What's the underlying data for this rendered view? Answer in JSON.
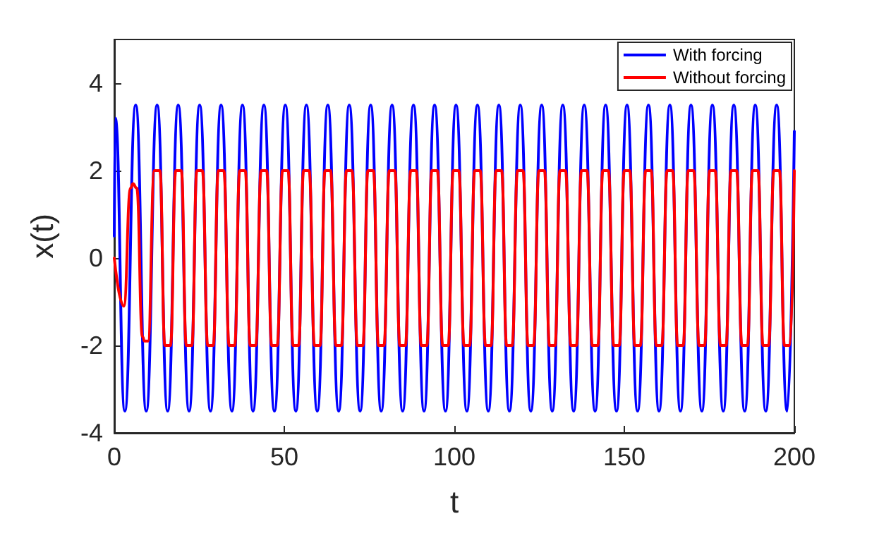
{
  "chart_data": {
    "type": "line",
    "xlabel": "t",
    "ylabel": "x(t)",
    "xlim": [
      0,
      200
    ],
    "ylim": [
      -4,
      5
    ],
    "xticks": [
      0,
      50,
      100,
      150,
      200
    ],
    "yticks": [
      -4,
      -2,
      0,
      2,
      4
    ],
    "grid": false,
    "legend": "top right",
    "marker": "none",
    "line_style": "solid",
    "series": [
      {
        "name": "With forcing",
        "color": "#0000ff",
        "x": [
          0,
          0.3,
          3.1,
          6.3,
          9.4,
          12.6,
          15.7,
          18.8,
          22.0,
          25.1,
          28.3,
          31.4,
          34.6,
          37.7,
          40.8,
          44.0,
          47.1,
          50.3,
          53.4,
          56.5,
          59.7,
          62.8,
          66.0,
          69.1,
          72.3,
          75.4,
          78.5,
          81.7,
          84.8,
          88.0,
          91.1,
          94.2,
          97.4,
          100.5,
          103.7,
          106.8,
          110.0,
          113.1,
          116.2,
          119.4,
          122.5,
          125.7,
          128.8,
          131.9,
          135.1,
          138.2,
          141.4,
          144.5,
          147.7,
          150.8,
          153.9,
          157.1,
          160.2,
          163.4,
          166.5,
          169.6,
          172.8,
          175.9,
          179.1,
          182.2,
          185.4,
          188.5,
          191.6,
          194.8,
          197.9,
          200
        ],
        "values": [
          0.5,
          3.2,
          -3.5,
          3.5,
          -3.5,
          3.5,
          -3.5,
          3.5,
          -3.5,
          3.5,
          -3.5,
          3.5,
          -3.5,
          3.5,
          -3.5,
          3.5,
          -3.5,
          3.5,
          -3.5,
          3.5,
          -3.5,
          3.5,
          -3.5,
          3.5,
          -3.5,
          3.5,
          -3.5,
          3.5,
          -3.5,
          3.5,
          -3.5,
          3.5,
          -3.5,
          3.5,
          -3.5,
          3.5,
          -3.5,
          3.5,
          -3.5,
          3.5,
          -3.5,
          3.5,
          -3.5,
          3.5,
          -3.5,
          3.5,
          -3.5,
          3.5,
          -3.5,
          3.5,
          -3.5,
          3.5,
          -3.5,
          3.5,
          -3.5,
          3.5,
          -3.5,
          3.5,
          -3.5,
          3.5,
          -3.5,
          3.5,
          -3.5,
          3.5,
          -3.5,
          2.9
        ]
      },
      {
        "name": "Without forcing",
        "color": "#ff0000",
        "x": [
          0,
          2.8,
          4.8,
          5.5,
          6.6,
          8.3,
          8.9,
          9.9,
          11.8,
          13.4,
          14.9,
          16.5,
          18.1,
          19.7,
          21.2,
          22.8,
          24.3,
          25.9,
          27.5,
          29.1,
          30.6,
          32.2,
          33.8,
          35.4,
          36.9,
          38.5,
          40.0,
          41.6,
          43.2,
          44.8,
          46.3,
          47.9,
          49.5,
          51.1,
          52.6,
          54.2,
          55.7,
          57.3,
          58.9,
          60.5,
          62.0,
          63.6,
          65.2,
          66.8,
          68.3,
          69.9,
          71.5,
          73.1,
          74.6,
          76.2,
          77.7,
          79.3,
          80.9,
          82.5,
          84.0,
          85.6,
          87.2,
          88.8,
          90.3,
          91.9,
          93.4,
          95.0,
          96.6,
          98.2,
          99.7,
          101.3,
          102.9,
          104.5,
          106.0,
          107.6,
          109.2,
          110.8,
          112.3,
          113.9,
          115.4,
          117.0,
          118.6,
          120.2,
          121.7,
          123.3,
          124.9,
          126.5,
          128.0,
          129.6,
          131.1,
          132.7,
          134.3,
          135.9,
          137.4,
          139.0,
          140.6,
          142.2,
          143.7,
          145.3,
          146.9,
          148.5,
          150.0,
          151.6,
          153.1,
          154.7,
          156.3,
          157.9,
          159.4,
          161.0,
          162.6,
          164.2,
          165.7,
          167.3,
          168.8,
          170.4,
          172.0,
          173.6,
          175.1,
          176.7,
          178.3,
          179.9,
          181.4,
          183.0,
          184.6,
          186.2,
          187.7,
          189.3,
          190.8,
          192.4,
          194.0,
          195.6,
          197.1,
          198.7,
          200
        ],
        "values": [
          0,
          -1.1,
          1.6,
          1.7,
          1.6,
          -1.8,
          -1.9,
          -1.9,
          2,
          2,
          -2,
          -2,
          2,
          2,
          -2,
          -2,
          2,
          2,
          -2,
          -2,
          2,
          2,
          -2,
          -2,
          2,
          2,
          -2,
          -2,
          2,
          2,
          -2,
          -2,
          2,
          2,
          -2,
          -2,
          2,
          2,
          -2,
          -2,
          2,
          2,
          -2,
          -2,
          2,
          2,
          -2,
          -2,
          2,
          2,
          -2,
          -2,
          2,
          2,
          -2,
          -2,
          2,
          2,
          -2,
          -2,
          2,
          2,
          -2,
          -2,
          2,
          2,
          -2,
          -2,
          2,
          2,
          -2,
          -2,
          2,
          2,
          -2,
          -2,
          2,
          2,
          -2,
          -2,
          2,
          2,
          -2,
          -2,
          2,
          2,
          -2,
          -2,
          2,
          2,
          -2,
          -2,
          2,
          2,
          -2,
          -2,
          2,
          2,
          -2,
          -2,
          2,
          2,
          -2,
          -2,
          2,
          2,
          -2,
          -2,
          2,
          2,
          -2,
          -2,
          2,
          2,
          -2,
          -2,
          2,
          2,
          -2,
          -2,
          2,
          2,
          -2,
          -2,
          2,
          2,
          -2,
          -2,
          2
        ]
      }
    ]
  }
}
